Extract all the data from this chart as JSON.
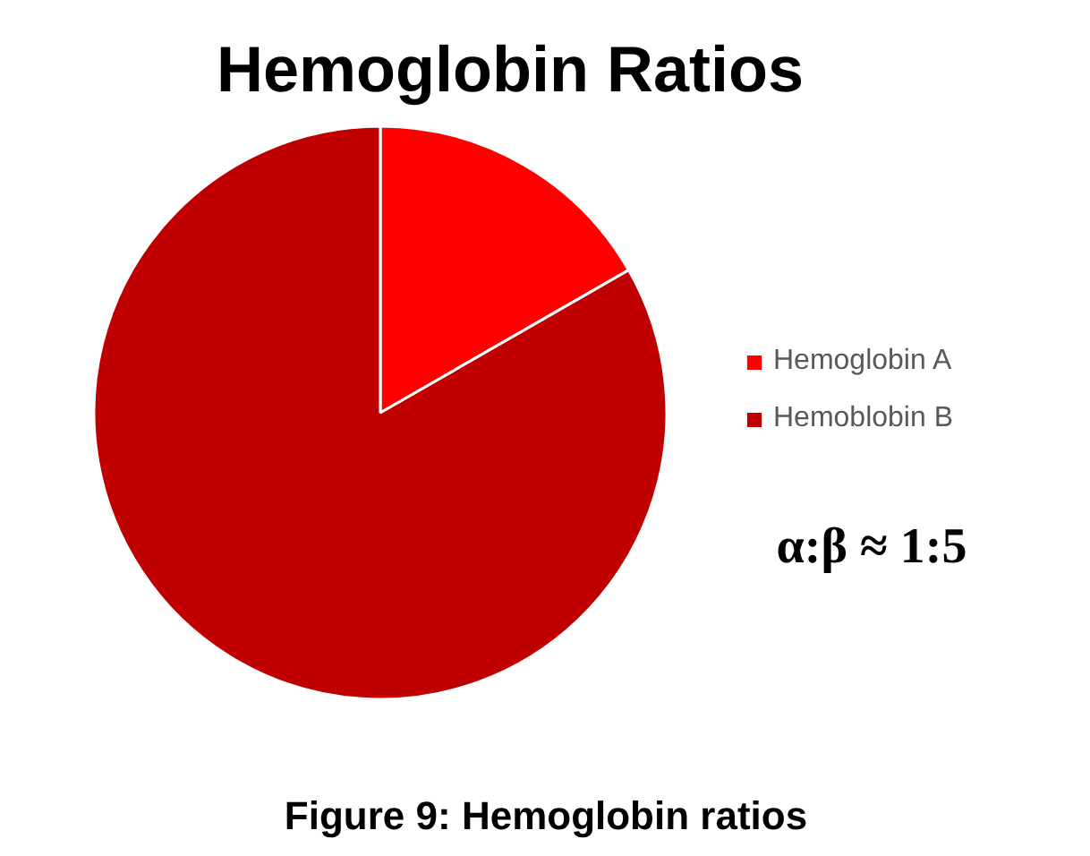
{
  "chart_data": {
    "type": "pie",
    "title": "Hemoglobin Ratios",
    "categories": [
      "Hemoglobin A",
      "Hemoblobin B"
    ],
    "values": [
      16.7,
      83.3
    ],
    "colors": [
      "#ff0000",
      "#c00000"
    ],
    "legend": "right",
    "annotations": [
      "α:β  ≈ 1:5",
      "Figure 9: Hemoglobin ratios"
    ]
  }
}
